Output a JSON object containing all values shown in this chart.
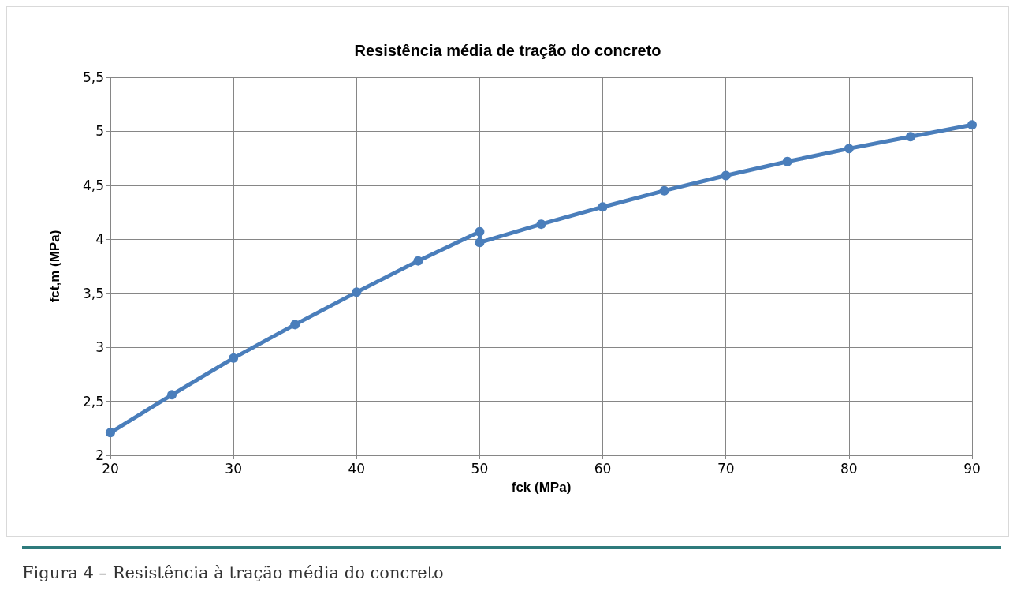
{
  "chart_data": {
    "type": "line",
    "title": "Resistência média de tração do concreto",
    "xlabel": "fck (MPa)",
    "ylabel": "fct,m (MPa)",
    "series": [
      {
        "color": "#4a7ebb",
        "x": [
          20,
          25,
          30,
          35,
          40,
          45,
          50,
          50,
          55,
          60,
          65,
          70,
          75,
          80,
          85,
          90
        ],
        "values": [
          2.21,
          2.56,
          2.9,
          3.21,
          3.51,
          3.8,
          4.07,
          3.97,
          4.14,
          4.3,
          4.45,
          4.59,
          4.72,
          4.84,
          4.95,
          5.06
        ]
      }
    ],
    "xlim": [
      20,
      90
    ],
    "xticks": [
      20,
      30,
      40,
      50,
      60,
      70,
      80,
      90
    ],
    "ylim": [
      2,
      5.5
    ],
    "yticks": [
      2,
      {
        "value": 2.5,
        "label": "2,5"
      },
      3,
      {
        "value": 3.5,
        "label": "3,5"
      },
      4,
      {
        "value": 4.5,
        "label": "4,5"
      },
      5,
      {
        "value": 5.5,
        "label": "5,5"
      }
    ],
    "grid": true,
    "marker": "circle",
    "line_style": "solid",
    "annotations": [
      "Figura 4 – Resistência à tração média do concreto"
    ]
  }
}
